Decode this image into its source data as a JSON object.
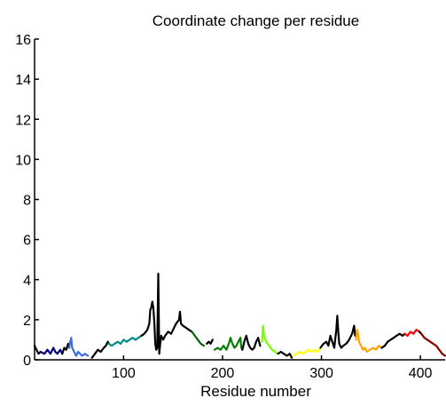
{
  "chart_data": {
    "type": "line",
    "title": "Coordinate change per residue",
    "xlabel": "Residue number",
    "ylabel": "",
    "xlim": [
      10,
      425
    ],
    "ylim": [
      0,
      16
    ],
    "xticks": [
      100,
      200,
      300,
      400
    ],
    "yticks": [
      0,
      2,
      4,
      6,
      8,
      10,
      12,
      14,
      16
    ],
    "grid": false,
    "series": [
      {
        "color": "#000000",
        "points": [
          [
            10,
            0.7
          ],
          [
            12,
            0.5
          ],
          [
            14,
            0.3
          ],
          [
            16,
            0.4
          ]
        ]
      },
      {
        "color": "#000080",
        "points": [
          [
            16,
            0.4
          ],
          [
            20,
            0.3
          ],
          [
            23,
            0.5
          ],
          [
            26,
            0.3
          ],
          [
            29,
            0.6
          ],
          [
            31,
            0.4
          ],
          [
            33,
            0.3
          ],
          [
            36,
            0.5
          ],
          [
            38,
            0.3
          ]
        ]
      },
      {
        "color": "#000000",
        "points": [
          [
            38,
            0.3
          ],
          [
            40,
            0.6
          ],
          [
            42,
            0.5
          ],
          [
            44,
            0.8
          ],
          [
            45,
            0.6
          ]
        ]
      },
      {
        "color": "#4169e1",
        "points": [
          [
            45,
            0.6
          ],
          [
            46,
            0.9
          ],
          [
            47,
            1.1
          ],
          [
            48,
            0.6
          ],
          [
            50,
            0.4
          ],
          [
            52,
            0.2
          ],
          [
            54,
            0.4
          ],
          [
            56,
            0.3
          ],
          [
            58,
            0.2
          ],
          [
            61,
            0.3
          ],
          [
            64,
            0.2
          ]
        ]
      },
      {
        "color": "#000000",
        "points": [
          [
            68,
            0.1
          ],
          [
            71,
            0.3
          ],
          [
            74,
            0.5
          ],
          [
            77,
            0.4
          ],
          [
            80,
            0.6
          ],
          [
            82,
            0.7
          ],
          [
            84,
            0.9
          ],
          [
            85,
            0.8
          ]
        ]
      },
      {
        "color": "#008b8b",
        "points": [
          [
            85,
            0.8
          ],
          [
            88,
            0.7
          ],
          [
            91,
            0.8
          ],
          [
            94,
            0.9
          ],
          [
            97,
            0.8
          ],
          [
            100,
            1.0
          ],
          [
            103,
            0.9
          ],
          [
            106,
            1.0
          ],
          [
            109,
            1.1
          ],
          [
            112,
            1.0
          ],
          [
            115,
            1.1
          ],
          [
            118,
            1.2
          ]
        ]
      },
      {
        "color": "#000000",
        "points": [
          [
            118,
            1.2
          ],
          [
            121,
            1.3
          ],
          [
            124,
            1.5
          ],
          [
            126,
            1.8
          ],
          [
            127,
            2.5
          ],
          [
            128,
            2.6
          ],
          [
            129,
            2.9
          ],
          [
            130,
            2.6
          ],
          [
            131,
            1.9
          ],
          [
            132,
            0.8
          ],
          [
            133,
            0.5
          ],
          [
            134,
            0.6
          ],
          [
            135,
            4.3
          ],
          [
            136,
            0.3
          ],
          [
            137,
            0.8
          ],
          [
            138,
            1.2
          ],
          [
            140,
            1.0
          ],
          [
            142,
            1.2
          ],
          [
            145,
            1.4
          ],
          [
            148,
            1.3
          ],
          [
            150,
            1.5
          ],
          [
            153,
            1.8
          ],
          [
            156,
            2.0
          ],
          [
            157,
            2.4
          ],
          [
            158,
            1.8
          ],
          [
            160,
            1.7
          ],
          [
            163,
            1.6
          ],
          [
            166,
            1.5
          ],
          [
            169,
            1.4
          ]
        ]
      },
      {
        "color": "#006400",
        "points": [
          [
            169,
            1.4
          ],
          [
            172,
            1.2
          ],
          [
            175,
            1.0
          ],
          [
            178,
            0.8
          ],
          [
            181,
            0.7
          ]
        ]
      },
      {
        "color": "#000000",
        "points": [
          [
            184,
            0.8
          ],
          [
            186,
            0.9
          ],
          [
            188,
            0.8
          ],
          [
            190,
            1.0
          ]
        ]
      },
      {
        "color": "#008000",
        "points": [
          [
            192,
            0.5
          ],
          [
            195,
            0.6
          ],
          [
            198,
            0.5
          ],
          [
            201,
            0.7
          ],
          [
            204,
            0.5
          ],
          [
            207,
            0.9
          ],
          [
            208,
            1.1
          ],
          [
            210,
            0.8
          ],
          [
            212,
            0.6
          ],
          [
            214,
            0.7
          ],
          [
            216,
            0.9
          ],
          [
            218,
            1.1
          ],
          [
            219,
            0.6
          ],
          [
            220,
            0.5
          ]
        ]
      },
      {
        "color": "#000000",
        "points": [
          [
            220,
            0.5
          ],
          [
            222,
            0.9
          ],
          [
            224,
            1.2
          ],
          [
            226,
            0.8
          ],
          [
            228,
            0.6
          ],
          [
            230,
            0.5
          ],
          [
            232,
            0.6
          ],
          [
            234,
            0.9
          ],
          [
            236,
            1.1
          ],
          [
            238,
            0.7
          ]
        ]
      },
      {
        "color": "#7cfc00",
        "points": [
          [
            240,
            0.9
          ],
          [
            241,
            1.7
          ],
          [
            242,
            1.2
          ],
          [
            244,
            0.9
          ],
          [
            247,
            0.7
          ],
          [
            250,
            0.5
          ],
          [
            253,
            0.4
          ],
          [
            256,
            0.3
          ]
        ]
      },
      {
        "color": "#000000",
        "points": [
          [
            256,
            0.3
          ],
          [
            259,
            0.4
          ],
          [
            262,
            0.3
          ],
          [
            265,
            0.2
          ],
          [
            268,
            0.3
          ],
          [
            270,
            0.1
          ]
        ]
      },
      {
        "color": "#ffff00",
        "points": [
          [
            272,
            0.2
          ],
          [
            275,
            0.3
          ],
          [
            278,
            0.4
          ],
          [
            281,
            0.3
          ],
          [
            284,
            0.4
          ],
          [
            287,
            0.5
          ],
          [
            290,
            0.4
          ],
          [
            293,
            0.5
          ],
          [
            296,
            0.4
          ],
          [
            299,
            0.6
          ]
        ]
      },
      {
        "color": "#000000",
        "points": [
          [
            299,
            0.6
          ],
          [
            302,
            0.8
          ],
          [
            305,
            0.9
          ],
          [
            307,
            0.7
          ],
          [
            309,
            1.2
          ],
          [
            311,
            0.9
          ],
          [
            313,
            0.6
          ],
          [
            315,
            1.5
          ],
          [
            316,
            2.2
          ],
          [
            317,
            1.4
          ],
          [
            318,
            0.8
          ],
          [
            320,
            0.6
          ],
          [
            322,
            0.7
          ],
          [
            325,
            0.8
          ],
          [
            328,
            1.0
          ],
          [
            331,
            1.3
          ],
          [
            333,
            1.7
          ],
          [
            334,
            1.2
          ]
        ]
      },
      {
        "color": "#ffa500",
        "points": [
          [
            335,
            1.0
          ],
          [
            336,
            1.5
          ],
          [
            337,
            1.3
          ],
          [
            338,
            0.9
          ],
          [
            340,
            0.7
          ],
          [
            342,
            0.5
          ],
          [
            344,
            0.6
          ],
          [
            346,
            0.4
          ],
          [
            349,
            0.5
          ],
          [
            352,
            0.6
          ],
          [
            355,
            0.5
          ],
          [
            358,
            0.7
          ],
          [
            361,
            0.6
          ]
        ]
      },
      {
        "color": "#000000",
        "points": [
          [
            361,
            0.6
          ],
          [
            364,
            0.7
          ],
          [
            367,
            0.9
          ],
          [
            370,
            1.0
          ],
          [
            373,
            1.1
          ],
          [
            376,
            1.2
          ],
          [
            379,
            1.3
          ],
          [
            382,
            1.2
          ],
          [
            384,
            1.3
          ]
        ]
      },
      {
        "color": "#ff0000",
        "points": [
          [
            384,
            1.3
          ],
          [
            387,
            1.2
          ],
          [
            390,
            1.4
          ],
          [
            393,
            1.3
          ],
          [
            396,
            1.5
          ],
          [
            399,
            1.4
          ]
        ]
      },
      {
        "color": "#000000",
        "points": [
          [
            399,
            1.4
          ],
          [
            401,
            1.3
          ]
        ]
      },
      {
        "color": "#8b0000",
        "points": [
          [
            401,
            1.3
          ],
          [
            404,
            1.1
          ],
          [
            407,
            1.0
          ],
          [
            410,
            0.9
          ],
          [
            413,
            0.8
          ],
          [
            416,
            0.7
          ],
          [
            419,
            0.5
          ],
          [
            422,
            0.3
          ],
          [
            425,
            0.2
          ]
        ]
      }
    ]
  }
}
